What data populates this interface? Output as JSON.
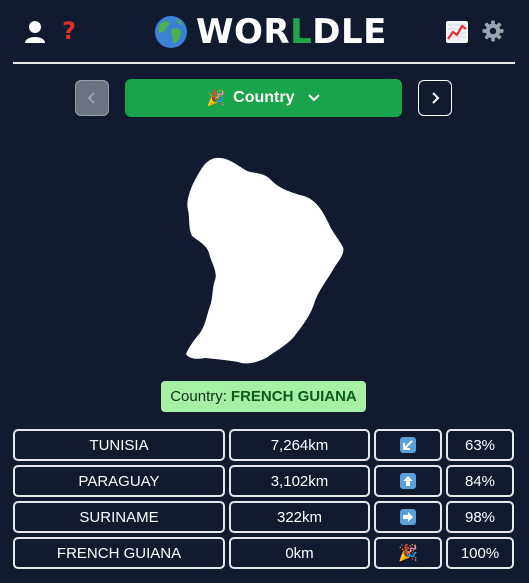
{
  "header": {
    "title_prefix": "WOR",
    "title_accent": "L",
    "title_suffix": "DLE",
    "icons": [
      "user-icon",
      "help-icon",
      "stats-icon",
      "gear-icon",
      "globe-icon"
    ],
    "help_glyph": "?"
  },
  "mode": {
    "emoji": "🎉",
    "label": "Country"
  },
  "answer": {
    "prefix": "Country:",
    "name": "FRENCH GUIANA"
  },
  "guesses": [
    {
      "name": "TUNISIA",
      "distance": "7,264km",
      "direction": "south-west",
      "proximity": "63%"
    },
    {
      "name": "PARAGUAY",
      "distance": "3,102km",
      "direction": "north",
      "proximity": "84%"
    },
    {
      "name": "SURINAME",
      "distance": "322km",
      "direction": "east",
      "proximity": "98%"
    },
    {
      "name": "FRENCH GUIANA",
      "distance": "0km",
      "direction": "🎉",
      "proximity": "100%"
    }
  ],
  "colors": {
    "background": "#111a2e",
    "accent_green": "#19a34a",
    "answer_badge": "#a6f0a6",
    "help_red": "#e0302e"
  }
}
